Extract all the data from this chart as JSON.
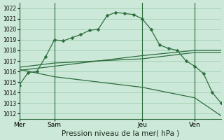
{
  "bg_color": "#cce8d8",
  "grid_color": "#99ccaa",
  "line_color": "#2d6e3e",
  "xlabel": "Pression niveau de la mer( hPa )",
  "xlabel_fontsize": 7.5,
  "ylim": [
    1011.5,
    1022.5
  ],
  "yticks": [
    1012,
    1013,
    1014,
    1015,
    1016,
    1017,
    1018,
    1019,
    1020,
    1021,
    1022
  ],
  "xtick_labels": [
    "Mer",
    "Sam",
    "Jeu",
    "Ven"
  ],
  "xtick_positions": [
    0,
    4,
    14,
    20
  ],
  "vline_positions": [
    0,
    4,
    14,
    20
  ],
  "xlim": [
    0,
    23
  ],
  "series1_x": [
    0,
    1,
    2,
    3,
    4,
    5,
    6,
    7,
    8,
    9,
    10,
    11,
    12,
    13,
    14,
    15,
    16,
    17,
    18,
    19,
    20,
    21,
    22,
    23
  ],
  "series1_y": [
    1014.7,
    1015.9,
    1016.0,
    1017.4,
    1019.0,
    1018.9,
    1019.2,
    1019.5,
    1019.9,
    1020.0,
    1021.3,
    1021.6,
    1021.5,
    1021.4,
    1021.0,
    1020.0,
    1018.5,
    1018.2,
    1018.0,
    1017.0,
    1016.5,
    1015.8,
    1014.0,
    1013.0
  ],
  "series2_x": [
    0,
    4,
    14,
    20,
    23
  ],
  "series2_y": [
    1016.1,
    1016.5,
    1017.5,
    1018.0,
    1018.0
  ],
  "series3_x": [
    0,
    4,
    14,
    20,
    23
  ],
  "series3_y": [
    1016.4,
    1016.8,
    1017.2,
    1017.8,
    1017.8
  ],
  "series4_x": [
    0,
    4,
    14,
    20,
    23
  ],
  "series4_y": [
    1016.2,
    1015.5,
    1014.5,
    1013.5,
    1011.8
  ],
  "series1_markers_x": [
    0,
    2,
    4,
    6,
    8,
    10,
    11,
    12,
    13,
    14,
    15,
    16,
    17,
    18,
    19,
    20,
    21,
    22,
    23
  ],
  "series1_markers_y": [
    1014.7,
    1016.0,
    1019.0,
    1019.2,
    1019.9,
    1021.3,
    1021.6,
    1021.5,
    1021.4,
    1021.0,
    1020.0,
    1018.5,
    1018.2,
    1018.0,
    1017.0,
    1016.5,
    1015.8,
    1014.0,
    1013.0
  ]
}
